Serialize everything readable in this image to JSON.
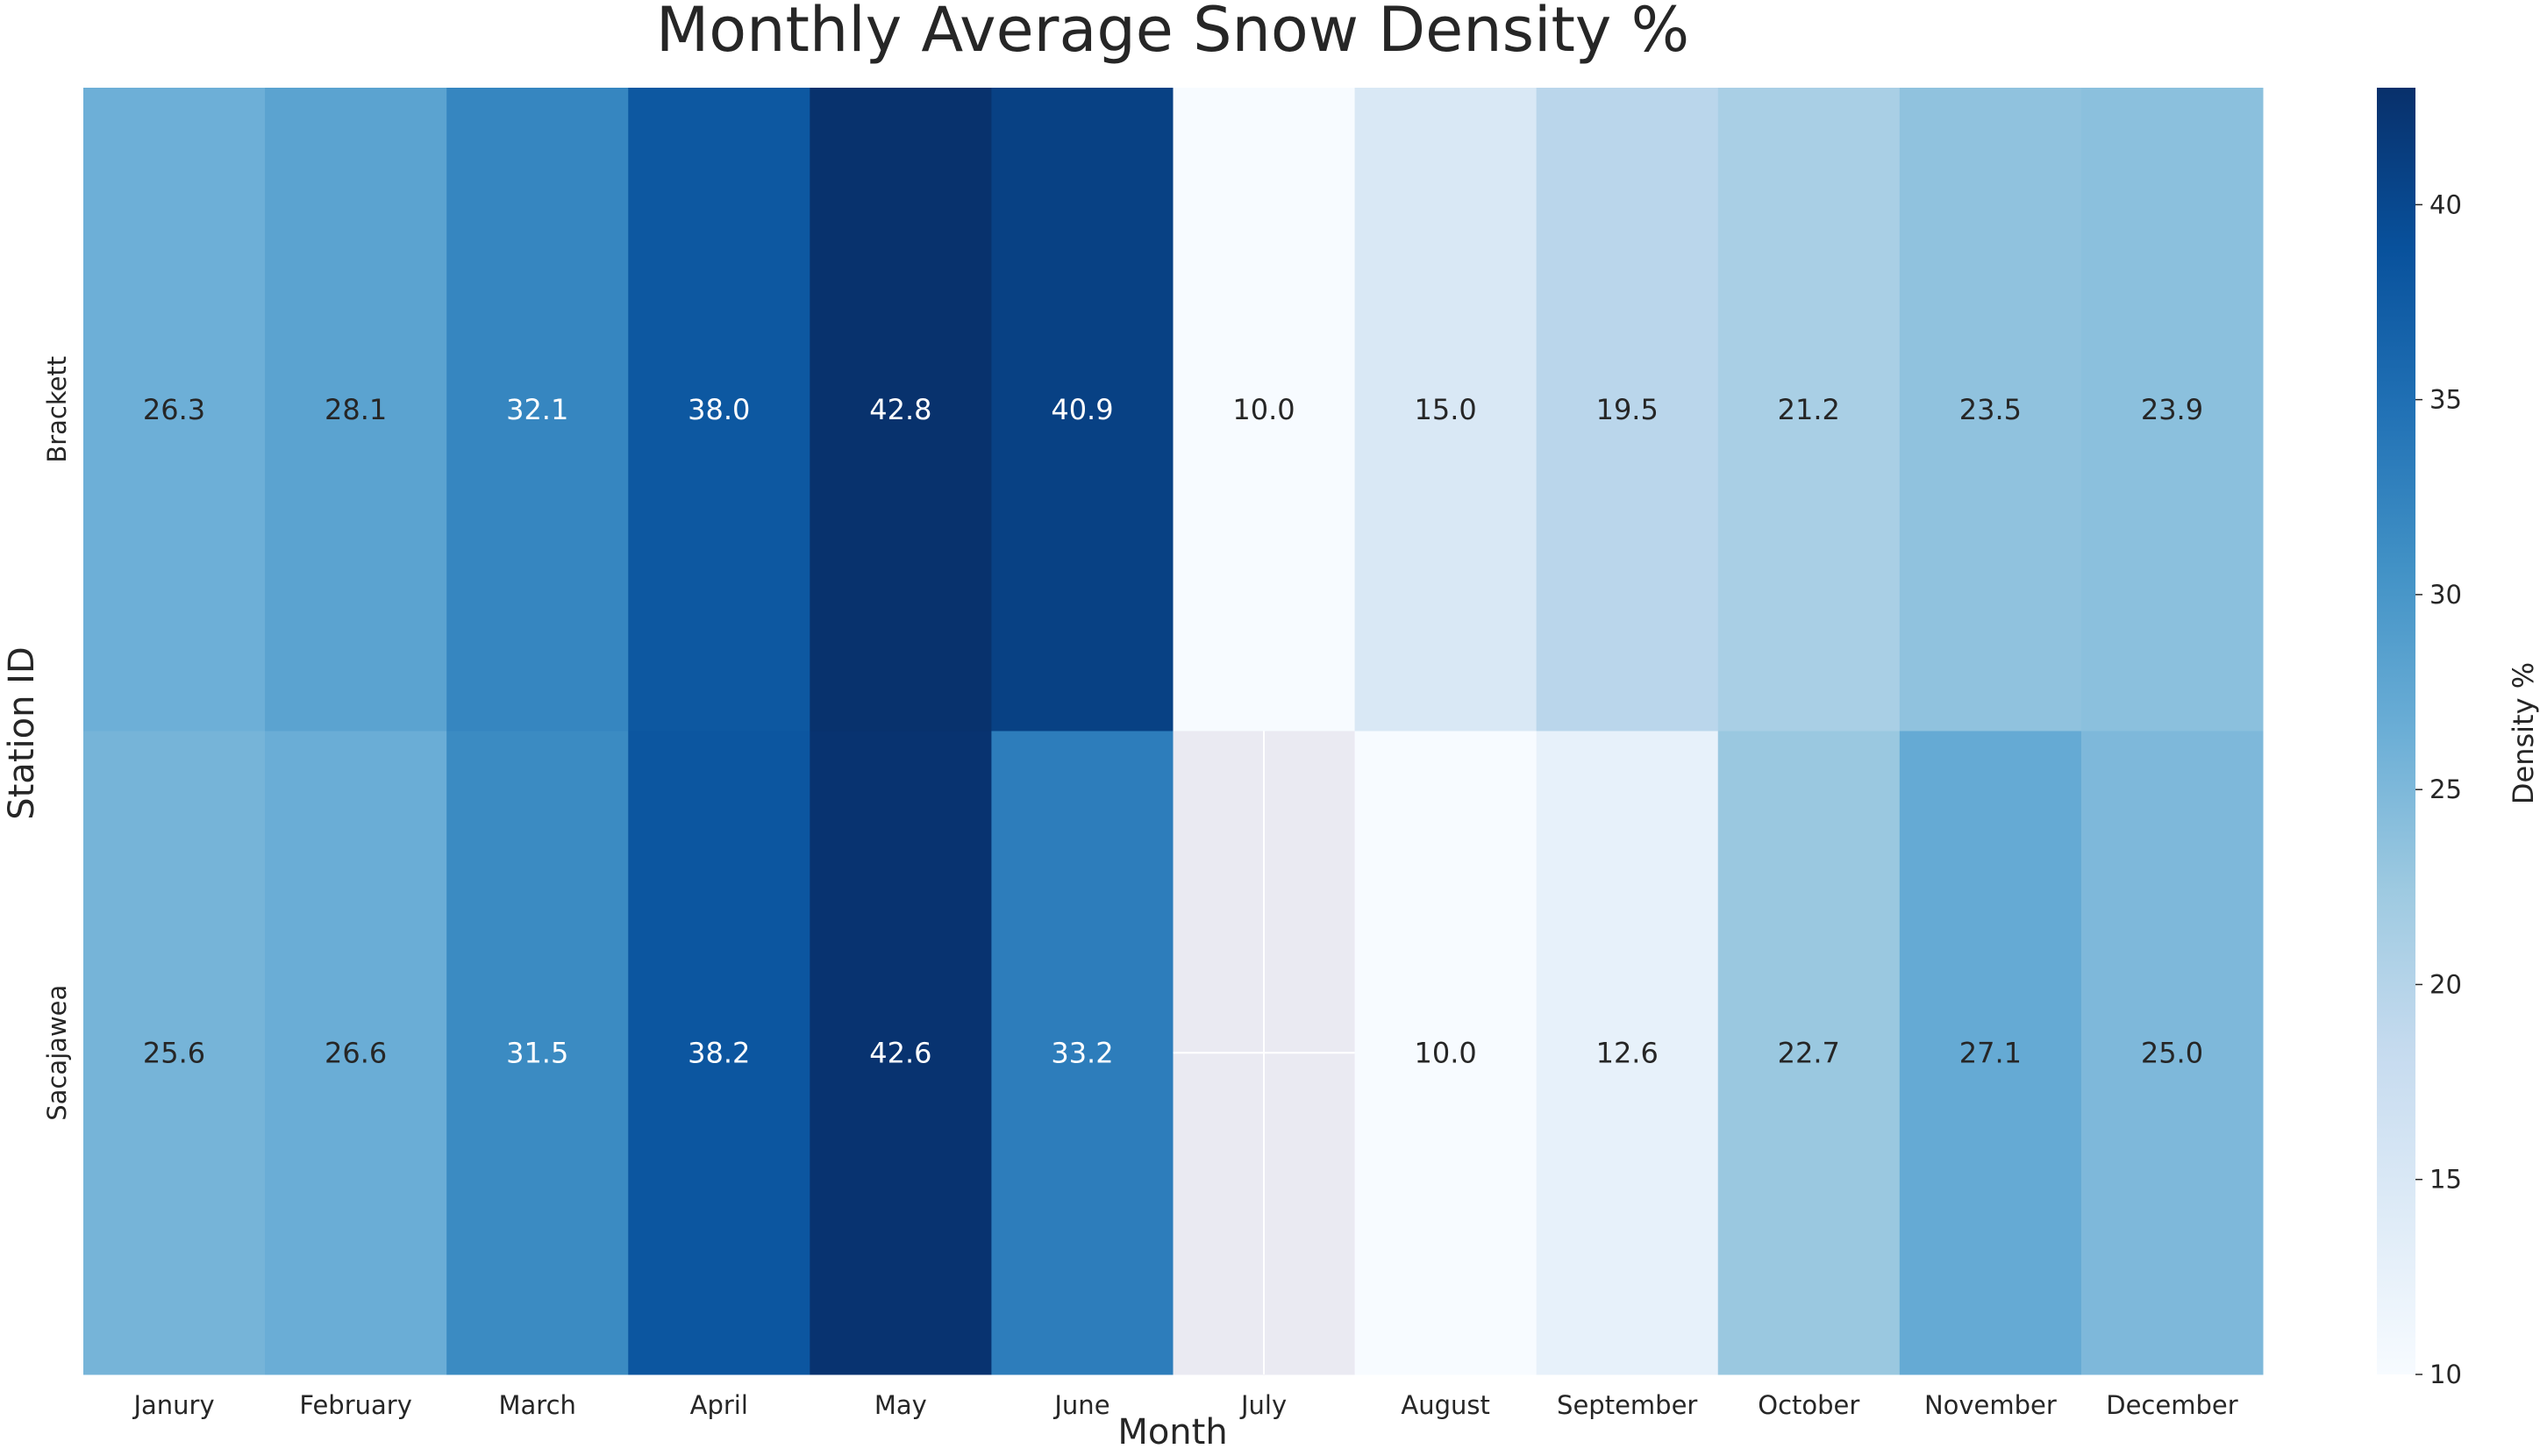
{
  "chart_data": {
    "type": "heatmap",
    "title": "Monthly Average Snow Density %",
    "xlabel": "Month",
    "ylabel": "Station ID",
    "colorbar_label": "Density %",
    "x_categories": [
      "Janury",
      "February",
      "March",
      "April",
      "May",
      "June",
      "July",
      "August",
      "September",
      "October",
      "November",
      "December"
    ],
    "y_categories": [
      "Brackett",
      "Sacajawea"
    ],
    "values": [
      [
        26.3,
        28.1,
        32.1,
        38.0,
        42.8,
        40.9,
        10.0,
        15.0,
        19.5,
        21.2,
        23.5,
        23.9
      ],
      [
        25.6,
        26.6,
        31.5,
        38.2,
        42.6,
        33.2,
        null,
        10.0,
        12.6,
        22.7,
        27.1,
        25.0
      ]
    ],
    "value_labels": [
      [
        "26.3",
        "28.1",
        "32.1",
        "38.0",
        "42.8",
        "40.9",
        "10.0",
        "15.0",
        "19.5",
        "21.2",
        "23.5",
        "23.9"
      ],
      [
        "25.6",
        "26.6",
        "31.5",
        "38.2",
        "42.6",
        "33.2",
        "",
        "10.0",
        "12.6",
        "22.7",
        "27.1",
        "25.0"
      ]
    ],
    "colorbar_range": [
      10,
      43
    ],
    "colorbar_ticks": [
      "10",
      "15",
      "20",
      "25",
      "30",
      "35",
      "40"
    ],
    "colormap": "Blues",
    "missing_color": "#eaeaf2",
    "grid": true,
    "legend": "colorbar-right"
  }
}
